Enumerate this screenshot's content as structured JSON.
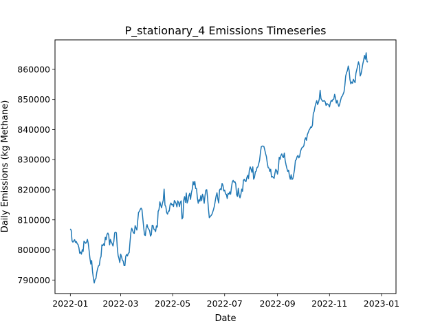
{
  "chart_data": {
    "type": "line",
    "title": "P_stationary_4 Emissions Timeseries",
    "xlabel": "Date",
    "ylabel": "Daily Emissions (kg Methane)",
    "x_start": "2022-01-01",
    "x_end": "2022-12-31",
    "xlim": [
      "2021-12-14",
      "2023-01-18"
    ],
    "ylim": [
      785500,
      869800
    ],
    "x_ticks": [
      "2022-01",
      "2022-03",
      "2022-05",
      "2022-07",
      "2022-09",
      "2022-11",
      "2023-01"
    ],
    "y_ticks": [
      790000,
      800000,
      810000,
      820000,
      830000,
      840000,
      850000,
      860000
    ],
    "y_tick_labels": [
      "790000",
      "800000",
      "810000",
      "820000",
      "830000",
      "840000",
      "850000",
      "860000"
    ],
    "grid": false,
    "legend": "none",
    "color": "#1f77b4",
    "series": [
      {
        "values": [
          807000,
          806500,
          803000,
          802600,
          803000,
          803400,
          802500,
          802800,
          802100,
          801800,
          800800,
          798900,
          799300,
          798600,
          800100,
          799500,
          802900,
          802600,
          802200,
          802600,
          803500,
          802200,
          799800,
          797200,
          795300,
          796500,
          792900,
          790700,
          789000,
          790200,
          790500,
          792500,
          793800,
          794700,
          794900,
          797100,
          797800,
          801700,
          801400,
          802000,
          801400,
          804200,
          803400,
          805200,
          805600,
          805000,
          801700,
          803500,
          802600,
          802100,
          801300,
          802800,
          805700,
          805900,
          805700,
          801100,
          798200,
          797200,
          795800,
          798600,
          797800,
          796600,
          796300,
          794800,
          794800,
          797900,
          798500,
          798000,
          798900,
          799100,
          802700,
          805800,
          807200,
          806500,
          805700,
          805500,
          808100,
          807300,
          806600,
          809600,
          812500,
          812800,
          813500,
          813900,
          813400,
          810500,
          807600,
          805000,
          804800,
          807500,
          808400,
          807300,
          806900,
          806400,
          804600,
          805100,
          808200,
          808100,
          806900,
          806700,
          806100,
          808000,
          807600,
          812800,
          813400,
          816000,
          814900,
          814000,
          815400,
          816500,
          820200,
          814900,
          814400,
          812400,
          811900,
          812900,
          812900,
          815000,
          815600,
          815000,
          815100,
          814400,
          816400,
          816000,
          815400,
          814300,
          816300,
          815700,
          814400,
          815900,
          816300,
          810300,
          810800,
          816500,
          817700,
          815800,
          818900,
          815600,
          816400,
          818000,
          818800,
          816800,
          819000,
          820200,
          822700,
          821600,
          822800,
          820400,
          820400,
          817300,
          815500,
          816700,
          816200,
          818000,
          816400,
          818500,
          817600,
          815500,
          818100,
          819900,
          820000,
          817200,
          813600,
          810700,
          811100,
          811400,
          811800,
          812600,
          813500,
          814600,
          816300,
          817900,
          819000,
          816900,
          815600,
          819900,
          820300,
          820000,
          822100,
          821500,
          819600,
          819900,
          818600,
          818500,
          817100,
          818800,
          818500,
          819300,
          818500,
          820800,
          822600,
          823100,
          822500,
          822700,
          822000,
          818400,
          817800,
          820500,
          818200,
          817300,
          818400,
          820200,
          819500,
          823100,
          823500,
          822900,
          822700,
          824000,
          824800,
          823700,
          826600,
          827600,
          826800,
          825800,
          827600,
          823500,
          824100,
          825900,
          826200,
          827400,
          827600,
          828700,
          829800,
          832400,
          834300,
          834500,
          834500,
          834400,
          833300,
          832000,
          831000,
          828900,
          827400,
          827200,
          826100,
          826800,
          824200,
          824400,
          824100,
          823800,
          825500,
          826800,
          826300,
          825200,
          827000,
          830800,
          830100,
          831400,
          831900,
          831000,
          830700,
          832200,
          829700,
          828300,
          827100,
          826100,
          826500,
          824600,
          823500,
          825000,
          823400,
          823700,
          825100,
          826800,
          829700,
          830000,
          831000,
          831400,
          830600,
          831100,
          832800,
          833600,
          834100,
          834200,
          834700,
          836600,
          837300,
          836400,
          838300,
          839000,
          839800,
          840200,
          840900,
          840700,
          841500,
          845400,
          846000,
          847600,
          848700,
          849600,
          848300,
          849000,
          850100,
          853000,
          850300,
          849800,
          849400,
          849500,
          849600,
          849200,
          848000,
          848600,
          848400,
          848200,
          847500,
          848900,
          849700,
          849400,
          850000,
          850100,
          851700,
          850600,
          848800,
          849700,
          848500,
          847700,
          848500,
          849700,
          850800,
          851100,
          851800,
          852500,
          854700,
          857800,
          858900,
          859600,
          861100,
          859700,
          856600,
          855200,
          855800,
          855400,
          856700,
          856100,
          855600,
          858700,
          859900,
          861100,
          862500,
          861400,
          857800,
          858500,
          860000,
          861700,
          863000,
          864600,
          863400,
          865500,
          862600,
          862400
        ]
      }
    ]
  }
}
